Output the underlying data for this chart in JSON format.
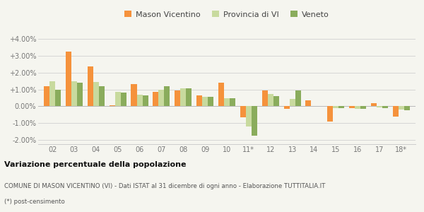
{
  "years": [
    "02",
    "03",
    "04",
    "05",
    "06",
    "07",
    "08",
    "09",
    "10",
    "11*",
    "12",
    "13",
    "14",
    "15",
    "16",
    "17",
    "18*"
  ],
  "mason": [
    1.2,
    3.25,
    2.35,
    0.05,
    1.3,
    0.85,
    0.95,
    0.65,
    1.4,
    -0.65,
    0.95,
    -0.15,
    0.35,
    -0.9,
    -0.1,
    0.2,
    -0.6
  ],
  "provincia": [
    1.5,
    1.5,
    1.45,
    0.85,
    0.7,
    1.0,
    1.05,
    0.55,
    0.5,
    -1.2,
    0.75,
    0.45,
    0.0,
    -0.1,
    -0.15,
    -0.05,
    -0.2
  ],
  "veneto": [
    1.0,
    1.4,
    1.2,
    0.8,
    0.65,
    1.2,
    1.05,
    0.55,
    0.5,
    -1.75,
    0.6,
    0.95,
    0.0,
    -0.1,
    -0.15,
    -0.1,
    -0.25
  ],
  "mason_color": "#f5923c",
  "provincia_color": "#c8da9e",
  "veneto_color": "#8aac5c",
  "bg_color": "#f5f5ef",
  "ylim_min": -2.25,
  "ylim_max": 4.3,
  "yticks": [
    -2.0,
    -1.0,
    0.0,
    1.0,
    2.0,
    3.0,
    4.0
  ],
  "title1": "Variazione percentuale della popolazione",
  "title2": "COMUNE DI MASON VICENTINO (VI) - Dati ISTAT al 31 dicembre di ogni anno - Elaborazione TUTTITALIA.IT",
  "title3": "(*) post-censimento",
  "legend_labels": [
    "Mason Vicentino",
    "Provincia di VI",
    "Veneto"
  ]
}
